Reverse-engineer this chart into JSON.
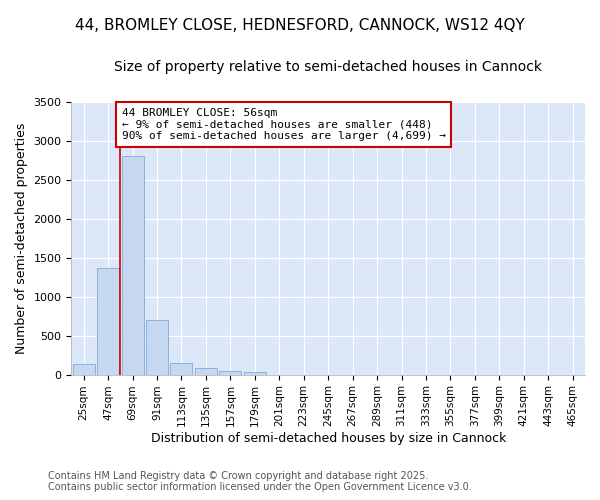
{
  "title1": "44, BROMLEY CLOSE, HEDNESFORD, CANNOCK, WS12 4QY",
  "title2": "Size of property relative to semi-detached houses in Cannock",
  "xlabel": "Distribution of semi-detached houses by size in Cannock",
  "ylabel": "Number of semi-detached properties",
  "bin_labels": [
    "25sqm",
    "47sqm",
    "69sqm",
    "91sqm",
    "113sqm",
    "135sqm",
    "157sqm",
    "179sqm",
    "201sqm",
    "223sqm",
    "245sqm",
    "267sqm",
    "289sqm",
    "311sqm",
    "333sqm",
    "355sqm",
    "377sqm",
    "399sqm",
    "421sqm",
    "443sqm",
    "465sqm"
  ],
  "bar_values": [
    130,
    1370,
    2800,
    700,
    155,
    80,
    45,
    35,
    0,
    0,
    0,
    0,
    0,
    0,
    0,
    0,
    0,
    0,
    0,
    0,
    0
  ],
  "bar_color": "#c5d8f0",
  "bar_edge_color": "#7aace0",
  "vline_bin_index": 1.5,
  "annotation_title": "44 BROMLEY CLOSE: 56sqm",
  "annotation_line1": "← 9% of semi-detached houses are smaller (448)",
  "annotation_line2": "90% of semi-detached houses are larger (4,699) →",
  "ylim": [
    0,
    3500
  ],
  "yticks": [
    0,
    500,
    1000,
    1500,
    2000,
    2500,
    3000,
    3500
  ],
  "fig_bg_color": "#ffffff",
  "plot_bg_color": "#dce8f8",
  "footer1": "Contains HM Land Registry data © Crown copyright and database right 2025.",
  "footer2": "Contains public sector information licensed under the Open Government Licence v3.0.",
  "vline_color": "#cc0000",
  "annotation_box_edge_color": "#cc0000",
  "title1_fontsize": 11,
  "title2_fontsize": 10,
  "xlabel_fontsize": 9,
  "ylabel_fontsize": 9,
  "annotation_fontsize": 8,
  "footer_fontsize": 7
}
